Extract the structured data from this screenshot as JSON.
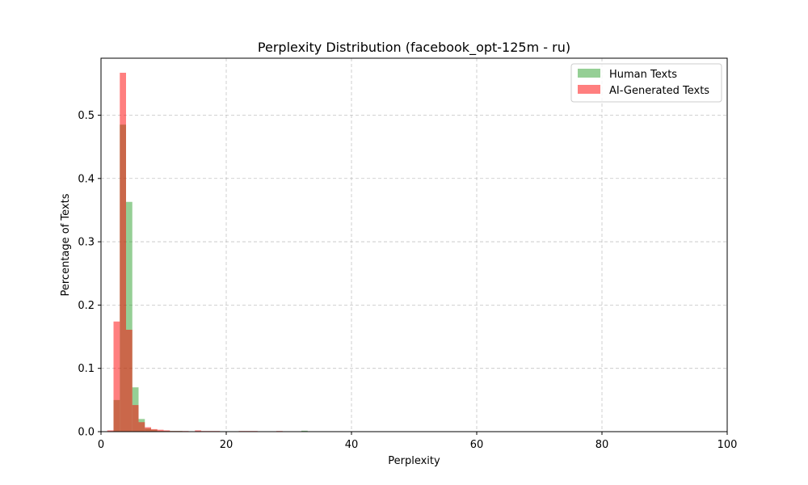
{
  "chart_data": {
    "type": "bar",
    "title": "Perplexity Distribution (facebook_opt-125m - ru)",
    "xlabel": "Perplexity",
    "ylabel": "Percentage of Texts",
    "xlim": [
      0,
      100
    ],
    "ylim": [
      0,
      0.59
    ],
    "xticks": [
      0,
      20,
      40,
      60,
      80,
      100
    ],
    "yticks": [
      0.0,
      0.1,
      0.2,
      0.3,
      0.4,
      0.5
    ],
    "xtick_labels": [
      "0",
      "20",
      "40",
      "60",
      "80",
      "100"
    ],
    "ytick_labels": [
      "0.0",
      "0.1",
      "0.2",
      "0.3",
      "0.4",
      "0.5"
    ],
    "grid": true,
    "legend_position": "top-right",
    "bin_width": 1,
    "bin_starts": [
      1,
      2,
      3,
      4,
      5,
      6,
      7,
      8,
      9,
      10,
      11,
      12,
      13,
      14,
      15,
      16,
      17,
      18,
      19,
      22,
      23,
      24,
      28,
      32
    ],
    "series": [
      {
        "name": "Human Texts",
        "color": "#2ca02c",
        "values": [
          0.0,
          0.05,
          0.485,
          0.363,
          0.07,
          0.02,
          0.005,
          0.003,
          0.001,
          0.001,
          0.001,
          0.001,
          0.0005,
          0.0005,
          0.0005,
          0.0005,
          0.0005,
          0.0005,
          0.0005,
          0.0005,
          0.0005,
          0.0005,
          0.0005,
          0.0015
        ]
      },
      {
        "name": "AI-Generated Texts",
        "color": "#ff0000",
        "values": [
          0.002,
          0.174,
          0.567,
          0.161,
          0.042,
          0.015,
          0.007,
          0.004,
          0.003,
          0.002,
          0.001,
          0.001,
          0.001,
          0.0005,
          0.002,
          0.001,
          0.001,
          0.001,
          0.0005,
          0.001,
          0.001,
          0.001,
          0.001,
          0.0
        ]
      }
    ]
  }
}
